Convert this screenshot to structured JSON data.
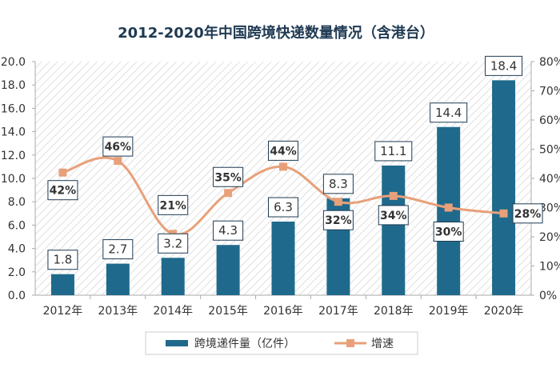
{
  "chart_data": {
    "title": "2012-2020年中国跨境快递数量情况（含港台）",
    "type": "bar+line",
    "categories": [
      "2012年",
      "2013年",
      "2014年",
      "2015年",
      "2016年",
      "2017年",
      "2018年",
      "2019年",
      "2020年"
    ],
    "series": [
      {
        "name": "跨境递件量（亿件）",
        "type": "bar",
        "axis": "left",
        "values": [
          1.8,
          2.7,
          3.2,
          4.3,
          6.3,
          8.3,
          11.1,
          14.4,
          18.4
        ],
        "labels": [
          "1.8",
          "2.7",
          "3.2",
          "4.3",
          "6.3",
          "8.3",
          "11.1",
          "14.4",
          "18.4"
        ],
        "color": "#1f6a8c"
      },
      {
        "name": "增速",
        "type": "line",
        "axis": "right",
        "values": [
          42,
          46,
          21,
          35,
          44,
          32,
          34,
          30,
          28
        ],
        "labels": [
          "42%",
          "46%",
          "21%",
          "35%",
          "44%",
          "32%",
          "34%",
          "30%",
          "28%"
        ],
        "color": "#e8a07a"
      }
    ],
    "y_left": {
      "ylim": [
        0,
        20
      ],
      "ticks": [
        "0.0",
        "2.0",
        "4.0",
        "6.0",
        "8.0",
        "10.0",
        "12.0",
        "14.0",
        "16.0",
        "18.0",
        "20.0"
      ]
    },
    "y_right": {
      "ylim": [
        0,
        80
      ],
      "ticks": [
        "0%",
        "10%",
        "20%",
        "30%",
        "40%",
        "50%",
        "60%",
        "70%",
        "80%"
      ]
    },
    "legend_position": "bottom-center",
    "plot_background": "diagonal-hatch",
    "colors": {
      "title": "#1f3a52",
      "axis": "#aaaaaa",
      "hatch": "#d8d8d8"
    }
  }
}
